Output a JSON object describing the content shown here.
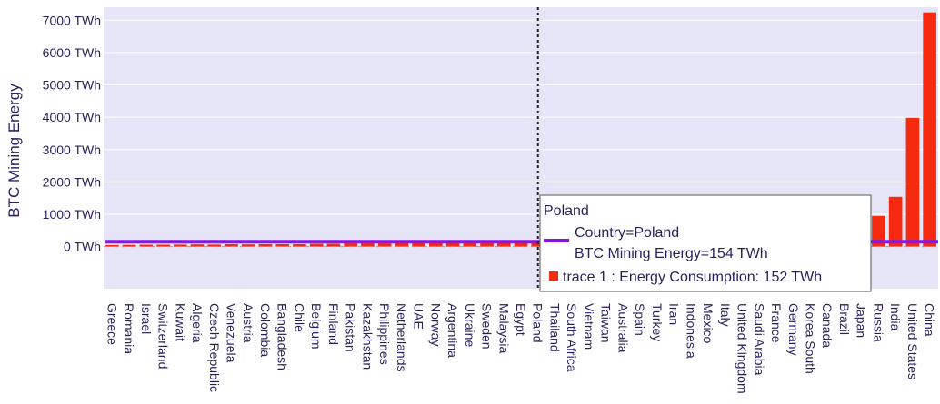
{
  "chart_data": {
    "type": "bar",
    "ylabel": "BTC Mining Energy",
    "yunit": "TWh",
    "ylim": [
      -1300,
      7400
    ],
    "yticks": [
      0,
      1000,
      2000,
      3000,
      4000,
      5000,
      6000,
      7000
    ],
    "ytick_labels": [
      "0 TWh",
      "1000 TWh",
      "2000 TWh",
      "3000 TWh",
      "4000 TWh",
      "5000 TWh",
      "6000 TWh",
      "7000 TWh"
    ],
    "categories": [
      "Greece",
      "Romania",
      "Israel",
      "Switzerland",
      "Kuwait",
      "Algeria",
      "Czech Republic",
      "Venezuela",
      "Austria",
      "Colombia",
      "Bangladesh",
      "Chile",
      "Belgium",
      "Finland",
      "Pakistan",
      "Kazakhstan",
      "Philippines",
      "Netherlands",
      "UAE",
      "Norway",
      "Argentina",
      "Ukraine",
      "Sweden",
      "Malaysia",
      "Egypt",
      "Poland",
      "Thailand",
      "South Africa",
      "Vietnam",
      "Taiwan",
      "Australia",
      "Spain",
      "Turkey",
      "Iran",
      "Indonesia",
      "Mexico",
      "Italy",
      "United Kingdom",
      "Saudi Arabia",
      "France",
      "Germany",
      "Korea South",
      "Canada",
      "Brazil",
      "Japan",
      "Russia",
      "India",
      "United States",
      "China"
    ],
    "series": [
      {
        "name": "trace 1",
        "type": "bar",
        "color": "#f52a0e",
        "values": [
          50,
          55,
          60,
          60,
          65,
          70,
          65,
          75,
          70,
          75,
          75,
          75,
          85,
          85,
          100,
          100,
          100,
          110,
          120,
          125,
          130,
          135,
          135,
          150,
          150,
          152,
          190,
          210,
          230,
          240,
          240,
          245,
          260,
          270,
          270,
          300,
          300,
          310,
          320,
          440,
          510,
          540,
          555,
          580,
          950,
          950,
          1540,
          3980,
          7240
        ]
      },
      {
        "name": "Country",
        "type": "line",
        "color": "#8a16e6",
        "value": 154
      }
    ],
    "reference_line_category": "Poland",
    "hover": {
      "title": "Poland",
      "line1": "Country=Poland",
      "line2": "BTC Mining Energy=154 TWh",
      "line3": "trace 1 : Energy Consumption: 152 TWh"
    }
  }
}
